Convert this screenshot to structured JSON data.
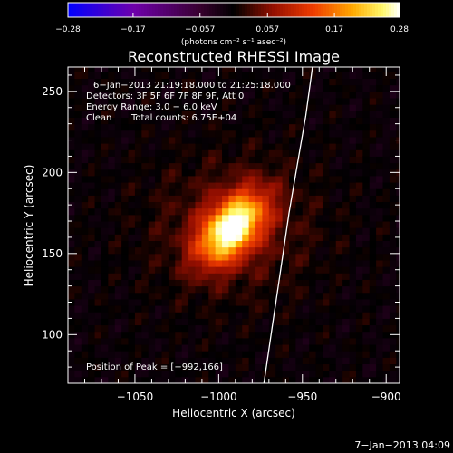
{
  "chart_data": {
    "type": "heatmap",
    "title": "Reconstructed RHESSI Image",
    "xlabel": "Heliocentric X (arcsec)",
    "ylabel": "Heliocentric Y (arcsec)",
    "xlim": [
      -1090,
      -892
    ],
    "ylim": [
      70,
      265
    ],
    "xticks": [
      -1050,
      -1000,
      -950,
      -900
    ],
    "xtick_labels": [
      "−1050",
      "−1000",
      "−950",
      "−900"
    ],
    "yticks": [
      100,
      150,
      200,
      250
    ],
    "ytick_labels": [
      "100",
      "150",
      "200",
      "250"
    ],
    "colorbar": {
      "min": -0.28,
      "max": 0.28,
      "ticks": [
        -0.28,
        -0.17,
        -0.057,
        0.057,
        0.17,
        0.28
      ],
      "tick_labels": [
        "−0.28",
        "−0.17",
        "−0.057",
        "0.057",
        "0.17",
        "0.28"
      ],
      "unit_label": "(photons cm⁻² s⁻¹ asec⁻²)",
      "colormap": "blue-purple-red-yellow-white"
    },
    "annotations": {
      "time_range": "6−Jan−2013 21:19:18.000 to 21:25:18.000",
      "detectors": "Detectors: 3F 5F 6F 7F 8F 9F, Att 0",
      "energy": "Energy Range: 3.0 − 6.0 keV",
      "method": "Clean",
      "counts": "Total counts: 6.75E+04",
      "peak": "Position of Peak = [−992,166]"
    },
    "source": {
      "peak": [
        -992,
        166
      ],
      "peak_value": 0.28,
      "sigma_major": 17,
      "sigma_minor": 10,
      "orientation_deg": 50
    },
    "limb_curve": {
      "x": [
        -973,
        -968,
        -963,
        -958,
        -953,
        -948,
        -944
      ],
      "y": [
        70,
        105,
        140,
        175,
        205,
        235,
        265
      ]
    },
    "footer": "7−Jan−2013 04:09",
    "grid": false
  }
}
